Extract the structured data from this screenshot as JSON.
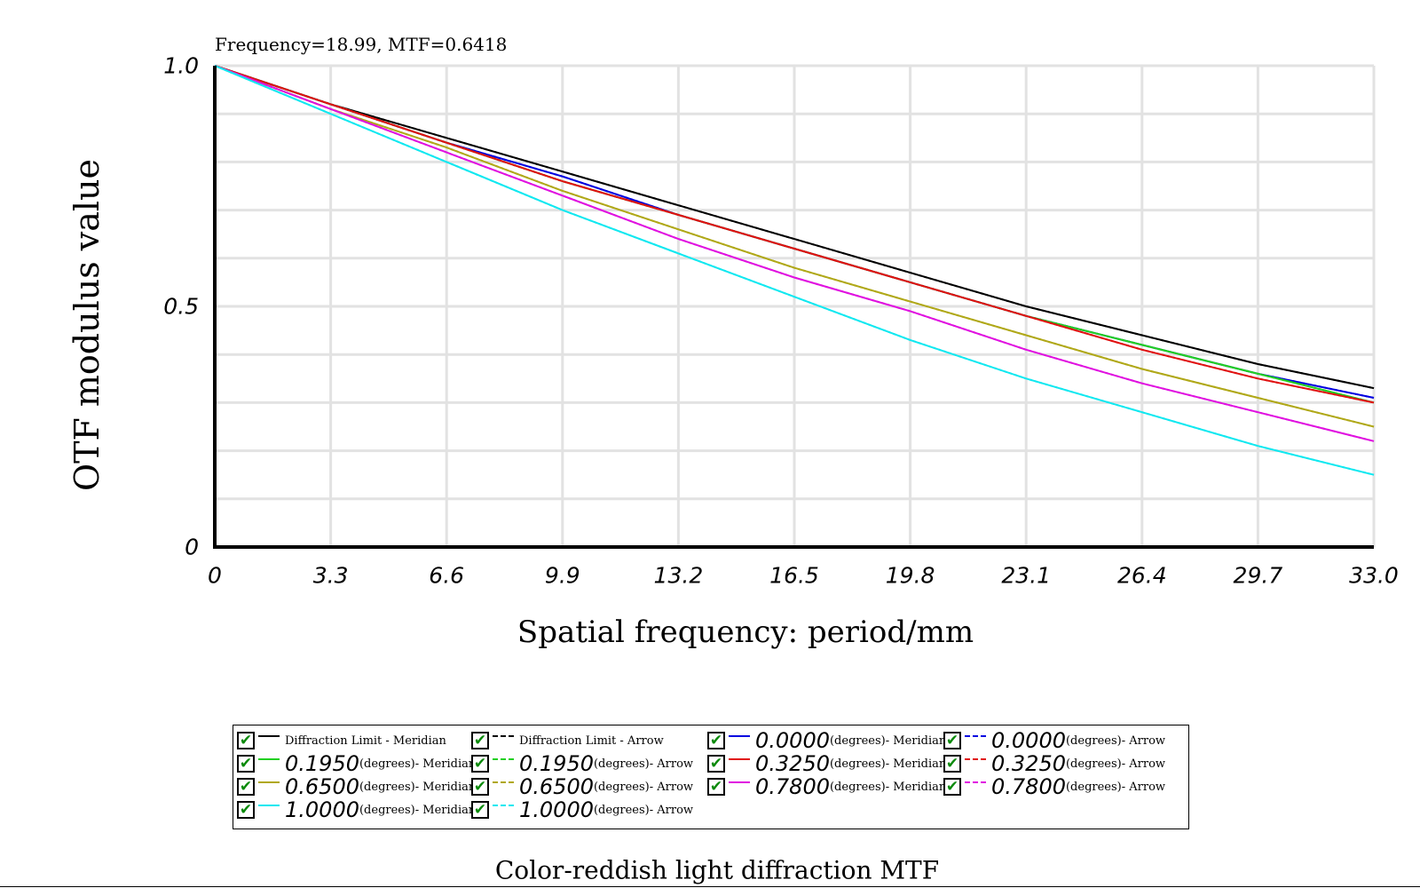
{
  "readout": "Frequency=18.99, MTF=0.6418",
  "chart_data": {
    "type": "line",
    "title": "Color-reddish light diffraction MTF",
    "xlabel": "Spatial frequency: period/mm",
    "ylabel": "OTF modulus value",
    "xlim": [
      0,
      33.0
    ],
    "ylim": [
      0,
      1.0
    ],
    "x_ticks": [
      "0",
      "3.3",
      "6.6",
      "9.9",
      "13.2",
      "16.5",
      "19.8",
      "23.1",
      "26.4",
      "29.7",
      "33.0"
    ],
    "y_ticks": [
      "0",
      "0.5",
      "1.0"
    ],
    "grid": true,
    "legend_position": "bottom",
    "x": [
      0,
      3.3,
      6.6,
      9.9,
      13.2,
      16.5,
      19.8,
      23.1,
      26.4,
      29.7,
      33.0
    ],
    "series": [
      {
        "name": "Diffraction Limit - Meridian",
        "color": "#000000",
        "dash": "solid",
        "values": [
          1.0,
          0.92,
          0.85,
          0.78,
          0.71,
          0.64,
          0.57,
          0.5,
          0.44,
          0.38,
          0.33
        ]
      },
      {
        "name": "Diffraction Limit - Arrow",
        "color": "#000000",
        "dash": "dotted",
        "values": [
          1.0,
          0.92,
          0.85,
          0.78,
          0.71,
          0.64,
          0.57,
          0.5,
          0.44,
          0.38,
          0.33
        ]
      },
      {
        "name": "0.0000 (degrees)- Meridian",
        "color": "#0000e0",
        "dash": "solid",
        "values": [
          1.0,
          0.92,
          0.84,
          0.77,
          0.69,
          0.62,
          0.55,
          0.48,
          0.42,
          0.36,
          0.31
        ]
      },
      {
        "name": "0.0000 (degrees)- Arrow",
        "color": "#0000e0",
        "dash": "dotted",
        "values": [
          1.0,
          0.92,
          0.84,
          0.77,
          0.69,
          0.62,
          0.55,
          0.48,
          0.42,
          0.36,
          0.31
        ]
      },
      {
        "name": "0.1950 (degrees)- Meridian",
        "color": "#22d022",
        "dash": "solid",
        "values": [
          1.0,
          0.92,
          0.84,
          0.76,
          0.69,
          0.62,
          0.55,
          0.48,
          0.42,
          0.36,
          0.3
        ]
      },
      {
        "name": "0.1950 (degrees)- Arrow",
        "color": "#22d022",
        "dash": "dotted",
        "values": [
          1.0,
          0.92,
          0.84,
          0.76,
          0.69,
          0.62,
          0.55,
          0.48,
          0.42,
          0.36,
          0.3
        ]
      },
      {
        "name": "0.3250 (degrees)- Meridian",
        "color": "#e01010",
        "dash": "solid",
        "values": [
          1.0,
          0.92,
          0.84,
          0.76,
          0.69,
          0.62,
          0.55,
          0.48,
          0.41,
          0.35,
          0.3
        ]
      },
      {
        "name": "0.3250 (degrees)- Arrow",
        "color": "#e01010",
        "dash": "dotted",
        "values": [
          1.0,
          0.92,
          0.84,
          0.76,
          0.69,
          0.62,
          0.55,
          0.48,
          0.41,
          0.35,
          0.3
        ]
      },
      {
        "name": "0.6500 (degrees)- Meridian",
        "color": "#b0a818",
        "dash": "solid",
        "values": [
          1.0,
          0.91,
          0.83,
          0.74,
          0.66,
          0.58,
          0.51,
          0.44,
          0.37,
          0.31,
          0.25
        ]
      },
      {
        "name": "0.6500 (degrees)- Arrow",
        "color": "#b0a818",
        "dash": "dotted",
        "values": [
          1.0,
          0.91,
          0.83,
          0.74,
          0.66,
          0.58,
          0.51,
          0.44,
          0.37,
          0.31,
          0.25
        ]
      },
      {
        "name": "0.7800 (degrees)- Meridian",
        "color": "#e010e0",
        "dash": "solid",
        "values": [
          1.0,
          0.91,
          0.82,
          0.73,
          0.64,
          0.56,
          0.49,
          0.41,
          0.34,
          0.28,
          0.22
        ]
      },
      {
        "name": "0.7800 (degrees)- Arrow",
        "color": "#e010e0",
        "dash": "dotted",
        "values": [
          1.0,
          0.91,
          0.82,
          0.73,
          0.64,
          0.56,
          0.49,
          0.41,
          0.34,
          0.28,
          0.22
        ]
      },
      {
        "name": "1.0000 (degrees)- Meridian",
        "color": "#10e8f0",
        "dash": "solid",
        "values": [
          1.0,
          0.9,
          0.8,
          0.7,
          0.61,
          0.52,
          0.43,
          0.35,
          0.28,
          0.21,
          0.15
        ]
      },
      {
        "name": "1.0000 (degrees)- Arrow",
        "color": "#10e8f0",
        "dash": "dotted",
        "values": [
          1.0,
          0.9,
          0.8,
          0.7,
          0.61,
          0.52,
          0.43,
          0.35,
          0.28,
          0.21,
          0.15
        ]
      }
    ]
  },
  "legend": {
    "items": [
      {
        "angle": "",
        "text": "Diffraction Limit - Meridian",
        "color": "#000000",
        "dash": "solid",
        "checked": true
      },
      {
        "angle": "",
        "text": "Diffraction Limit - Arrow",
        "color": "#000000",
        "dash": "dotted",
        "checked": true
      },
      {
        "angle": "0.0000",
        "text": "(degrees)- Meridian",
        "color": "#0000e0",
        "dash": "solid",
        "checked": true
      },
      {
        "angle": "0.0000",
        "text": "(degrees)- Arrow",
        "color": "#0000e0",
        "dash": "dotted",
        "checked": true
      },
      {
        "angle": "0.1950",
        "text": "(degrees)- Meridian",
        "color": "#22d022",
        "dash": "solid",
        "checked": true
      },
      {
        "angle": "0.1950",
        "text": "(degrees)- Arrow",
        "color": "#22d022",
        "dash": "dotted",
        "checked": true
      },
      {
        "angle": "0.3250",
        "text": "(degrees)- Meridian",
        "color": "#e01010",
        "dash": "solid",
        "checked": true
      },
      {
        "angle": "0.3250",
        "text": "(degrees)- Arrow",
        "color": "#e01010",
        "dash": "dotted",
        "checked": true
      },
      {
        "angle": "0.6500",
        "text": "(degrees)- Meridian",
        "color": "#b0a818",
        "dash": "solid",
        "checked": true
      },
      {
        "angle": "0.6500",
        "text": "(degrees)- Arrow",
        "color": "#b0a818",
        "dash": "dotted",
        "checked": true
      },
      {
        "angle": "0.7800",
        "text": "(degrees)- Meridian",
        "color": "#e010e0",
        "dash": "solid",
        "checked": true
      },
      {
        "angle": "0.7800",
        "text": "(degrees)- Arrow",
        "color": "#e010e0",
        "dash": "dotted",
        "checked": true
      },
      {
        "angle": "1.0000",
        "text": "(degrees)- Meridian",
        "color": "#10e8f0",
        "dash": "solid",
        "checked": true
      },
      {
        "angle": "1.0000",
        "text": "(degrees)- Arrow",
        "color": "#10e8f0",
        "dash": "dotted",
        "checked": true
      }
    ]
  }
}
